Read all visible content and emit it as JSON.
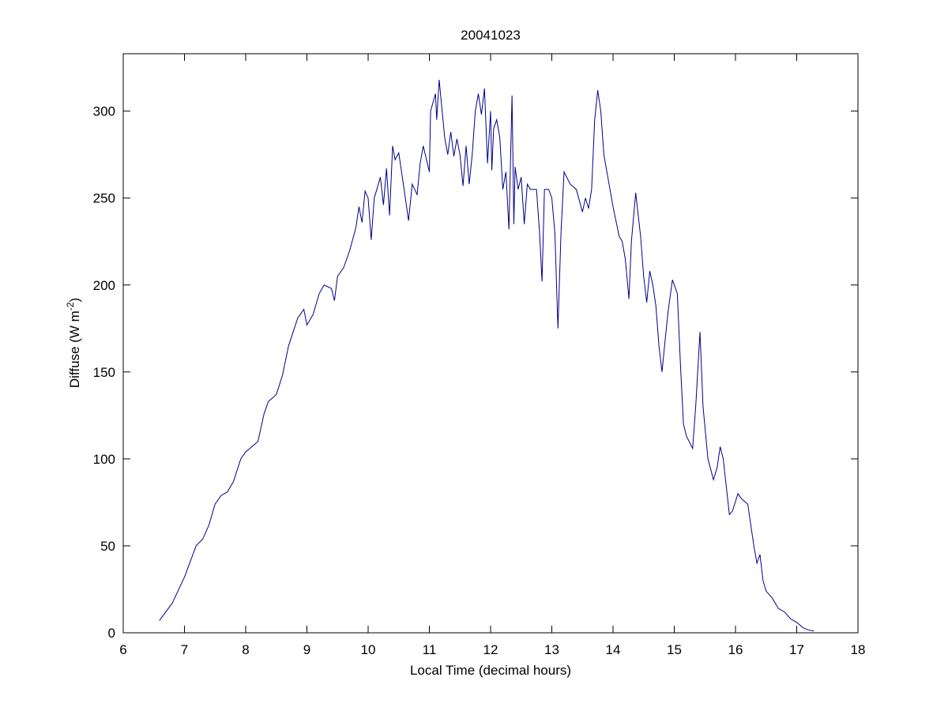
{
  "chart_data": {
    "type": "line",
    "title": "20041023",
    "xlabel": "Local Time (decimal hours)",
    "ylabel": {
      "text": "Diffuse (W m",
      "superscript": "-2",
      "suffix": ")"
    },
    "xlim": [
      6,
      18
    ],
    "xticks": [
      6,
      7,
      8,
      9,
      10,
      11,
      12,
      13,
      14,
      15,
      16,
      17,
      18
    ],
    "ylim": [
      0,
      333
    ],
    "yticks": [
      0,
      50,
      100,
      150,
      200,
      250,
      300
    ],
    "grid": false,
    "series": [
      {
        "name": "Diffuse",
        "color": "#00008b",
        "x": [
          6.59,
          6.8,
          7.0,
          7.19,
          7.3,
          7.4,
          7.5,
          7.6,
          7.7,
          7.8,
          7.92,
          8.0,
          8.1,
          8.2,
          8.3,
          8.37,
          8.5,
          8.6,
          8.7,
          8.85,
          8.95,
          9.0,
          9.1,
          9.2,
          9.28,
          9.4,
          9.45,
          9.5,
          9.6,
          9.7,
          9.8,
          9.85,
          9.9,
          9.95,
          10.0,
          10.05,
          10.1,
          10.2,
          10.25,
          10.3,
          10.35,
          10.4,
          10.44,
          10.5,
          10.6,
          10.66,
          10.72,
          10.8,
          10.85,
          10.9,
          11.0,
          11.02,
          11.1,
          11.12,
          11.16,
          11.25,
          11.3,
          11.35,
          11.4,
          11.45,
          11.5,
          11.55,
          11.6,
          11.65,
          11.7,
          11.75,
          11.8,
          11.85,
          11.9,
          11.95,
          12.0,
          12.02,
          12.05,
          12.1,
          12.15,
          12.2,
          12.25,
          12.3,
          12.35,
          12.38,
          12.4,
          12.45,
          12.5,
          12.55,
          12.6,
          12.65,
          12.75,
          12.8,
          12.84,
          12.88,
          12.95,
          13.0,
          13.05,
          13.1,
          13.15,
          13.2,
          13.3,
          13.4,
          13.5,
          13.55,
          13.6,
          13.65,
          13.7,
          13.75,
          13.8,
          13.85,
          13.9,
          14.0,
          14.1,
          14.15,
          14.2,
          14.26,
          14.3,
          14.37,
          14.45,
          14.5,
          14.55,
          14.6,
          14.65,
          14.7,
          14.75,
          14.8,
          14.85,
          14.9,
          14.97,
          15.05,
          15.1,
          15.15,
          15.2,
          15.3,
          15.35,
          15.42,
          15.47,
          15.55,
          15.64,
          15.7,
          15.75,
          15.8,
          15.9,
          15.95,
          16.04,
          16.1,
          16.2,
          16.3,
          16.35,
          16.4,
          16.45,
          16.5,
          16.6,
          16.7,
          16.8,
          16.9,
          17.0,
          17.1,
          17.2,
          17.28
        ],
        "values": [
          7,
          17,
          32,
          50,
          54,
          62,
          74,
          79,
          81,
          87,
          100,
          104,
          107,
          110,
          126,
          133,
          137,
          148,
          165,
          181,
          186,
          177,
          183,
          195,
          200,
          198,
          191,
          205,
          210,
          220,
          233,
          245,
          236,
          254,
          250,
          226,
          250,
          262,
          246,
          267,
          240,
          280,
          272,
          276,
          252,
          237,
          258,
          252,
          270,
          280,
          265,
          300,
          310,
          295,
          318,
          285,
          275,
          288,
          274,
          284,
          275,
          257,
          280,
          258,
          275,
          300,
          310,
          298,
          313,
          270,
          300,
          266,
          290,
          295,
          285,
          255,
          265,
          232,
          309,
          235,
          268,
          255,
          262,
          235,
          258,
          255,
          255,
          230,
          202,
          255,
          255,
          250,
          230,
          175,
          230,
          265,
          258,
          255,
          242,
          250,
          244,
          255,
          295,
          312,
          300,
          275,
          265,
          245,
          228,
          225,
          215,
          192,
          225,
          253,
          228,
          205,
          190,
          208,
          200,
          188,
          165,
          150,
          168,
          185,
          203,
          195,
          155,
          120,
          113,
          106,
          130,
          173,
          130,
          100,
          88,
          95,
          107,
          100,
          68,
          70,
          80,
          77,
          74,
          50,
          40,
          45,
          30,
          24,
          20,
          14,
          12,
          8,
          6,
          3,
          1.5,
          1
        ]
      }
    ]
  }
}
